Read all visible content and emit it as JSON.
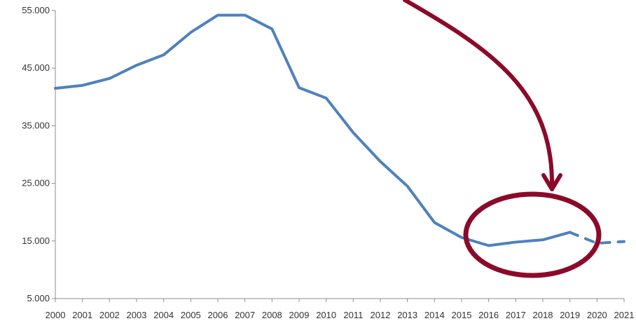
{
  "chart_data": {
    "type": "line",
    "title": "",
    "xlabel": "",
    "ylabel": "",
    "x": [
      "2000",
      "2001",
      "2002",
      "2003",
      "2004",
      "2005",
      "2006",
      "2007",
      "2008",
      "2009",
      "2010",
      "2011",
      "2012",
      "2013",
      "2014",
      "2015",
      "2016",
      "2017",
      "2018",
      "2019",
      "2020",
      "2021"
    ],
    "series": [
      {
        "values": [
          41500,
          42000,
          43200,
          45500,
          47300,
          51200,
          54200,
          54200,
          51800,
          41600,
          39800,
          33800,
          28800,
          24500,
          18200,
          15600,
          14200,
          14800,
          15200,
          16500,
          null,
          null
        ],
        "color": "#4f81bd",
        "style": "solid"
      },
      {
        "values": [
          null,
          null,
          null,
          null,
          null,
          null,
          null,
          null,
          null,
          null,
          null,
          null,
          null,
          null,
          null,
          null,
          null,
          null,
          null,
          16500,
          14600,
          14900
        ],
        "color": "#4f81bd",
        "style": "dashed"
      }
    ],
    "ylim": [
      5000,
      55000
    ],
    "y_ticks": [
      "5.000",
      "15.000",
      "25.000",
      "35.000",
      "45.000",
      "55.000"
    ],
    "y_tick_values": [
      5000,
      15000,
      25000,
      35000,
      45000,
      55000
    ],
    "grid": false,
    "annotations": [
      {
        "type": "ellipse",
        "color": "#8b0a2a",
        "around_x": [
          "2015",
          "2020"
        ]
      },
      {
        "type": "arrow",
        "color": "#8b0a2a",
        "points_to": "2018"
      }
    ]
  }
}
